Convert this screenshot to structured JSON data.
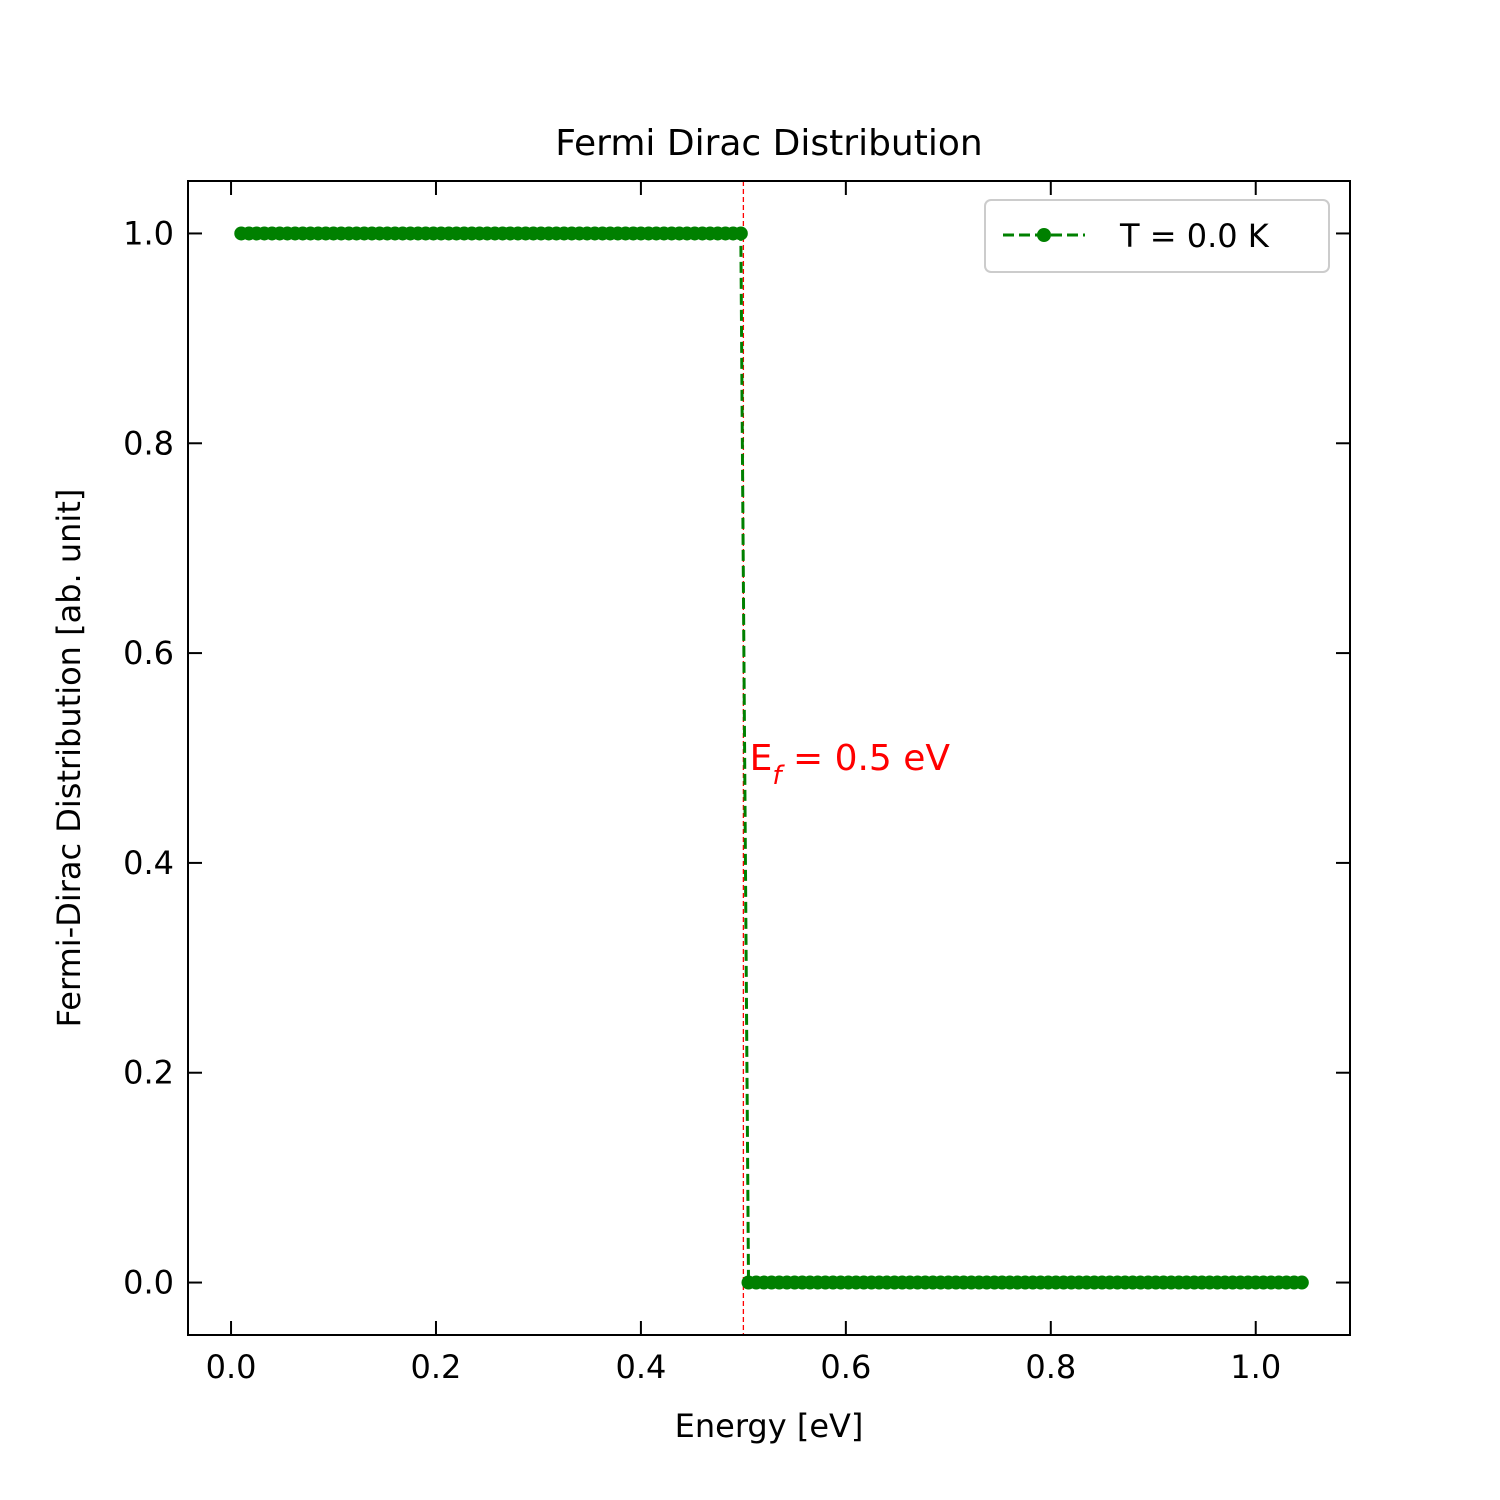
{
  "chart_data": {
    "type": "line",
    "title": "Fermi Dirac Distribution",
    "xlabel": "Energy [eV]",
    "ylabel": "Fermi-Dirac Distribution [ab. unit]",
    "xlim": [
      -0.042,
      1.092
    ],
    "ylim": [
      -0.05,
      1.05
    ],
    "x_ticks": [
      0.0,
      0.2,
      0.4,
      0.6,
      0.8,
      1.0
    ],
    "y_ticks": [
      0.0,
      0.2,
      0.4,
      0.6,
      0.8,
      1.0
    ],
    "x_tick_labels": [
      "0.0",
      "0.2",
      "0.4",
      "0.6",
      "0.8",
      "1.0"
    ],
    "y_tick_labels": [
      "0.0",
      "0.2",
      "0.4",
      "0.6",
      "0.8",
      "1.0"
    ],
    "grid": false,
    "legend_position": "top-right",
    "series": [
      {
        "name": "T = 0.0 K",
        "color": "#008000",
        "line_style": "dashed",
        "marker": "circle",
        "x_start": 0.01,
        "x_step": 0.0075,
        "point_count": 139,
        "step_at": 0.5,
        "value_below": 1.0,
        "value_above": 0.0
      }
    ],
    "annotations": [
      {
        "type": "vline",
        "x": 0.5,
        "color": "#ff0000",
        "line_style": "dashed"
      },
      {
        "type": "text",
        "main": "E",
        "subscript": "f",
        "rest": " = 0.5 eV",
        "x": 0.55,
        "y": 0.5,
        "color": "#ff0000"
      }
    ]
  }
}
